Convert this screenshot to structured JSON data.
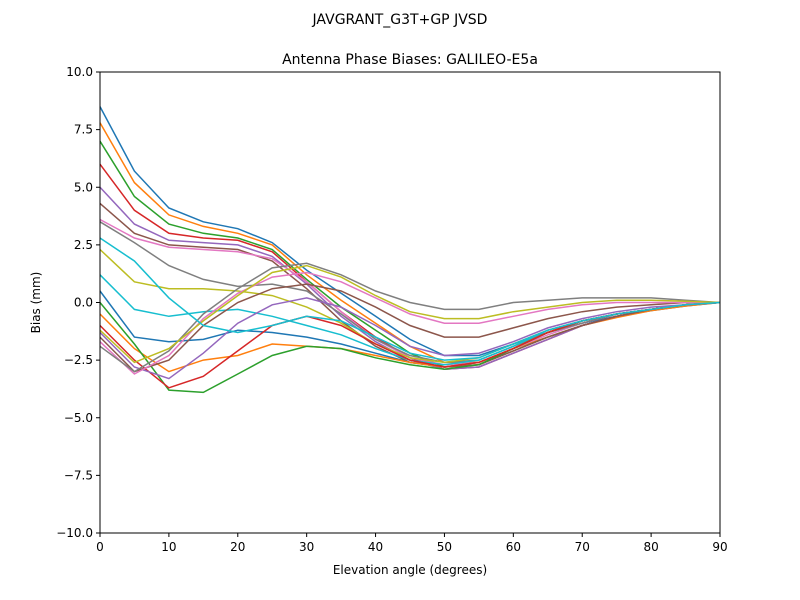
{
  "chart_data": {
    "type": "line",
    "suptitle": "JAVGRANT_G3T+GP JVSD",
    "title": "Antenna Phase Biases: GALILEO-E5a",
    "xlabel": "Elevation angle (degrees)",
    "ylabel": "Bias (mm)",
    "xlim": [
      0,
      90
    ],
    "ylim": [
      -10,
      10
    ],
    "xticks": [
      0,
      10,
      20,
      30,
      40,
      50,
      60,
      70,
      80,
      90
    ],
    "yticks": [
      -10.0,
      -7.5,
      -5.0,
      -2.5,
      0.0,
      2.5,
      5.0,
      7.5,
      10.0
    ],
    "grid": false,
    "legend": "none",
    "colors": [
      "#1f77b4",
      "#ff7f0e",
      "#2ca02c",
      "#d62728",
      "#9467bd",
      "#8c564b",
      "#e377c2",
      "#7f7f7f",
      "#bcbd22",
      "#17becf"
    ],
    "x": [
      0,
      5,
      10,
      15,
      20,
      25,
      30,
      35,
      40,
      45,
      50,
      55,
      60,
      65,
      70,
      75,
      80,
      85,
      90
    ],
    "series": [
      {
        "values": [
          8.5,
          5.7,
          4.1,
          3.5,
          3.2,
          2.6,
          1.4,
          0.4,
          -0.6,
          -1.6,
          -2.3,
          -2.3,
          -1.8,
          -1.3,
          -0.9,
          -0.6,
          -0.35,
          -0.15,
          0
        ]
      },
      {
        "values": [
          7.8,
          5.2,
          3.8,
          3.3,
          3.0,
          2.5,
          1.2,
          0.1,
          -0.9,
          -1.9,
          -2.6,
          -2.6,
          -2.0,
          -1.5,
          -1.0,
          -0.65,
          -0.35,
          -0.15,
          0
        ]
      },
      {
        "values": [
          7.0,
          4.6,
          3.4,
          3.0,
          2.8,
          2.3,
          1.0,
          -0.2,
          -1.2,
          -2.2,
          -2.8,
          -2.7,
          -2.1,
          -1.5,
          -1.0,
          -0.6,
          -0.3,
          -0.1,
          0
        ]
      },
      {
        "values": [
          6.0,
          4.0,
          3.0,
          2.8,
          2.7,
          2.2,
          0.9,
          -0.4,
          -1.5,
          -2.4,
          -2.9,
          -2.8,
          -2.2,
          -1.6,
          -1.0,
          -0.6,
          -0.3,
          -0.1,
          0
        ]
      },
      {
        "values": [
          5.0,
          3.4,
          2.7,
          2.6,
          2.5,
          2.0,
          0.8,
          -0.6,
          -1.7,
          -2.5,
          -2.9,
          -2.8,
          -2.2,
          -1.6,
          -1.0,
          -0.6,
          -0.3,
          -0.1,
          0
        ]
      },
      {
        "values": [
          4.3,
          3.0,
          2.5,
          2.4,
          2.3,
          1.8,
          0.6,
          -0.8,
          -1.9,
          -2.6,
          -2.8,
          -2.7,
          -2.1,
          -1.5,
          -1.0,
          -0.6,
          -0.3,
          -0.1,
          0
        ]
      },
      {
        "values": [
          3.6,
          2.8,
          2.4,
          2.3,
          2.2,
          1.9,
          0.9,
          -0.4,
          -1.6,
          -2.4,
          -2.7,
          -2.6,
          -2.0,
          -1.4,
          -0.9,
          -0.5,
          -0.3,
          -0.1,
          0
        ]
      },
      {
        "values": [
          3.5,
          2.6,
          1.6,
          1.0,
          0.7,
          0.8,
          0.5,
          -0.5,
          -1.6,
          -2.3,
          -2.6,
          -2.5,
          -1.9,
          -1.3,
          -0.9,
          -0.5,
          -0.3,
          -0.1,
          0
        ]
      },
      {
        "values": [
          2.3,
          0.9,
          0.6,
          0.6,
          0.5,
          0.3,
          -0.2,
          -0.9,
          -1.8,
          -2.4,
          -2.6,
          -2.4,
          -1.8,
          -1.2,
          -0.8,
          -0.5,
          -0.3,
          -0.1,
          0
        ]
      },
      {
        "values": [
          1.2,
          -0.3,
          -0.6,
          -0.4,
          -0.3,
          -0.6,
          -1.0,
          -1.4,
          -2.0,
          -2.5,
          -2.7,
          -2.5,
          -1.9,
          -1.2,
          -0.8,
          -0.5,
          -0.3,
          -0.1,
          0
        ]
      },
      {
        "values": [
          0.5,
          -1.5,
          -1.7,
          -1.6,
          -1.2,
          -1.3,
          -1.5,
          -1.8,
          -2.2,
          -2.6,
          -2.8,
          -2.6,
          -2.0,
          -1.3,
          -0.8,
          -0.5,
          -0.3,
          -0.1,
          0
        ]
      },
      {
        "values": [
          -0.5,
          -2.0,
          -3.0,
          -2.5,
          -2.3,
          -1.8,
          -1.9,
          -2.0,
          -2.3,
          -2.6,
          -2.8,
          -2.6,
          -2.0,
          -1.3,
          -0.8,
          -0.5,
          -0.3,
          -0.1,
          0
        ]
      },
      {
        "values": [
          0.0,
          -1.8,
          -3.8,
          -3.9,
          -3.1,
          -2.3,
          -1.9,
          -2.0,
          -2.4,
          -2.7,
          -2.9,
          -2.7,
          -2.0,
          -1.3,
          -0.8,
          -0.5,
          -0.3,
          -0.1,
          0
        ]
      },
      {
        "values": [
          -1.0,
          -2.5,
          -3.7,
          -3.2,
          -2.1,
          -1.0,
          -0.6,
          -1.0,
          -1.8,
          -2.5,
          -2.8,
          -2.6,
          -2.0,
          -1.3,
          -0.8,
          -0.5,
          -0.3,
          -0.1,
          0
        ]
      },
      {
        "values": [
          -1.3,
          -2.8,
          -3.3,
          -2.2,
          -0.9,
          -0.1,
          0.2,
          -0.2,
          -1.0,
          -1.9,
          -2.3,
          -2.2,
          -1.7,
          -1.1,
          -0.7,
          -0.4,
          -0.2,
          -0.1,
          0
        ]
      },
      {
        "values": [
          -1.5,
          -3.0,
          -2.5,
          -1.0,
          0.0,
          0.6,
          0.8,
          0.5,
          -0.2,
          -1.0,
          -1.5,
          -1.5,
          -1.1,
          -0.7,
          -0.4,
          -0.2,
          -0.1,
          0,
          0
        ]
      },
      {
        "values": [
          -1.7,
          -3.1,
          -2.3,
          -0.7,
          0.4,
          1.1,
          1.3,
          0.9,
          0.2,
          -0.5,
          -0.9,
          -0.9,
          -0.6,
          -0.3,
          -0.1,
          0,
          0,
          0,
          0
        ]
      },
      {
        "values": [
          -1.9,
          -3.0,
          -2.1,
          -0.5,
          0.6,
          1.5,
          1.7,
          1.2,
          0.5,
          0.0,
          -0.3,
          -0.3,
          0.0,
          0.1,
          0.2,
          0.2,
          0.2,
          0.1,
          0
        ]
      },
      {
        "values": [
          -1.2,
          -2.6,
          -2.0,
          -0.8,
          0.3,
          1.3,
          1.6,
          1.1,
          0.3,
          -0.4,
          -0.7,
          -0.7,
          -0.4,
          -0.2,
          0,
          0.1,
          0.1,
          0.05,
          0
        ]
      },
      {
        "values": [
          2.8,
          1.8,
          0.2,
          -1.0,
          -1.3,
          -1.0,
          -0.6,
          -0.8,
          -1.5,
          -2.2,
          -2.5,
          -2.4,
          -1.8,
          -1.2,
          -0.8,
          -0.5,
          -0.3,
          -0.1,
          0
        ]
      }
    ]
  }
}
